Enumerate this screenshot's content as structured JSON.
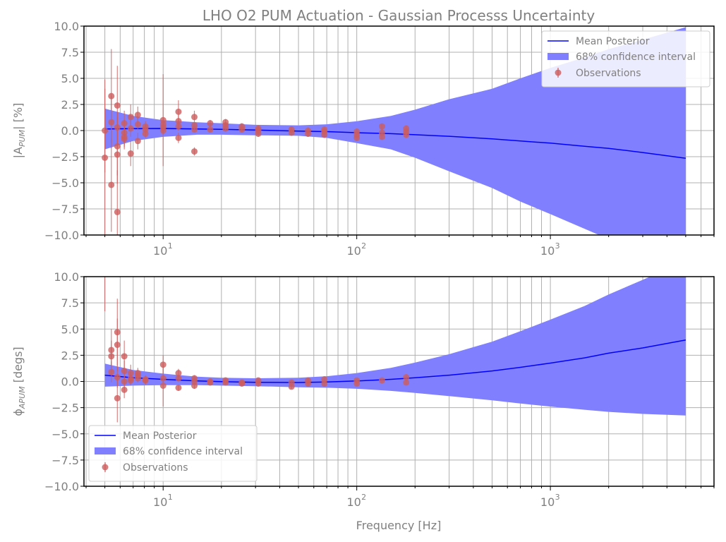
{
  "title": "LHO O2 PUM Actuation - Gaussian Processs Uncertainty",
  "xlabel": "Frequency [Hz]",
  "colors": {
    "mean": "#0000ff",
    "band": "#8080ff",
    "observations": "#cd5c5c",
    "grid": "#b0b0b0",
    "text": "#808080",
    "frame": "#000000"
  },
  "legend_labels": {
    "mean": "Mean Posterior",
    "band": "68% confidence interval",
    "obs": "Observations"
  },
  "chart_data": [
    {
      "type": "scatter",
      "panel": "top",
      "ylabel_main": "|A",
      "ylabel_sub": "PUM",
      "ylabel_tail": "| [%]",
      "xscale": "log",
      "xlim": [
        3.9,
        7000
      ],
      "ylim": [
        -10,
        10
      ],
      "xtick_base": "10",
      "xticks_exp": [
        "1",
        "2",
        "3"
      ],
      "yticks": [
        "10.0",
        "7.5",
        "5.0",
        "2.5",
        "0.0",
        "−2.5",
        "−5.0",
        "−7.5",
        "−10.0"
      ],
      "grid": true,
      "legend_position": "upper right",
      "mean_posterior": {
        "x": [
          5,
          7,
          10,
          15,
          20,
          30,
          50,
          70,
          100,
          150,
          200,
          300,
          500,
          700,
          1000,
          1500,
          2000,
          3000,
          5000
        ],
        "y": [
          0.15,
          0.18,
          0.2,
          0.15,
          0.12,
          0.05,
          -0.05,
          -0.1,
          -0.2,
          -0.3,
          -0.4,
          -0.55,
          -0.8,
          -1.0,
          -1.2,
          -1.5,
          -1.7,
          -2.1,
          -2.65
        ]
      },
      "confidence_band": {
        "x": [
          5,
          7,
          10,
          15,
          20,
          30,
          50,
          70,
          100,
          150,
          200,
          300,
          500,
          700,
          1000,
          1500,
          2000,
          3000,
          5000
        ],
        "upper": [
          2.1,
          1.4,
          1.0,
          0.8,
          0.7,
          0.55,
          0.5,
          0.6,
          0.9,
          1.4,
          2.0,
          3.0,
          4.0,
          5.0,
          6.0,
          7.0,
          7.8,
          8.7,
          9.9
        ],
        "lower": [
          -1.8,
          -1.0,
          -0.6,
          -0.4,
          -0.4,
          -0.45,
          -0.5,
          -0.7,
          -1.2,
          -1.8,
          -2.6,
          -3.9,
          -5.5,
          -6.8,
          -8.0,
          -9.4,
          -10.4,
          -11.5,
          -13.0
        ]
      },
      "observations": {
        "x": [
          5.0,
          5.0,
          5.4,
          5.4,
          5.4,
          5.8,
          5.8,
          5.8,
          5.8,
          5.8,
          6.3,
          6.3,
          6.3,
          6.3,
          6.8,
          6.8,
          6.8,
          7.4,
          7.4,
          7.4,
          8.1,
          8.1,
          8.1,
          10,
          10,
          10,
          10,
          12,
          12,
          12,
          12,
          14.5,
          14.5,
          14.5,
          14.5,
          17.5,
          17.5,
          21,
          21,
          21,
          25.5,
          25.5,
          31,
          31,
          31,
          46,
          46,
          56,
          56,
          68,
          68,
          68,
          100,
          100,
          100,
          135,
          135,
          135,
          180,
          180,
          180
        ],
        "y": [
          -2.6,
          0.0,
          3.3,
          0.8,
          -5.2,
          2.4,
          -1.5,
          -2.3,
          -7.8,
          0.3,
          0.7,
          -0.2,
          -0.6,
          -0.8,
          1.3,
          -2.2,
          0.2,
          1.5,
          -1.0,
          0.6,
          0.4,
          0.1,
          -0.3,
          1.0,
          0.6,
          0.3,
          0.0,
          1.8,
          0.9,
          0.4,
          -0.7,
          1.3,
          0.5,
          0.1,
          -2.0,
          0.7,
          0.1,
          0.8,
          0.5,
          0.2,
          0.4,
          0.1,
          0.2,
          0.0,
          -0.3,
          0.1,
          -0.2,
          0.0,
          -0.3,
          0.1,
          -0.1,
          -0.4,
          -0.1,
          -0.4,
          -0.7,
          0.4,
          -0.2,
          -0.6,
          0.2,
          -0.1,
          -0.4
        ],
        "err": [
          7.5,
          4.0,
          4.5,
          2.5,
          4.5,
          3.8,
          2.8,
          2.8,
          4.0,
          1.5,
          1.2,
          1.2,
          1.0,
          1.0,
          1.2,
          1.2,
          0.8,
          0.8,
          0.8,
          0.6,
          0.5,
          0.5,
          0.4,
          4.4,
          0.6,
          0.5,
          0.4,
          1.1,
          0.6,
          0.4,
          0.5,
          0.6,
          0.3,
          0.3,
          0.4,
          0.3,
          0.3,
          0.3,
          0.3,
          0.3,
          0.3,
          0.3,
          0.3,
          0.3,
          0.3,
          0.3,
          0.3,
          0.3,
          0.3,
          0.3,
          0.3,
          0.3,
          0.3,
          0.3,
          0.3,
          0.3,
          0.3,
          0.3,
          0.3,
          0.3,
          0.3
        ]
      }
    },
    {
      "type": "scatter",
      "panel": "bottom",
      "ylabel_main": "ϕ",
      "ylabel_sub": "APUM",
      "ylabel_tail": " [degs]",
      "xscale": "log",
      "xlim": [
        3.9,
        7000
      ],
      "ylim": [
        -10,
        10
      ],
      "xtick_base": "10",
      "xticks_exp": [
        "1",
        "2",
        "3"
      ],
      "yticks": [
        "10.0",
        "7.5",
        "5.0",
        "2.5",
        "0.0",
        "−2.5",
        "−5.0",
        "−7.5",
        "−10.0"
      ],
      "grid": true,
      "legend_position": "lower left",
      "mean_posterior": {
        "x": [
          5,
          7,
          10,
          15,
          20,
          30,
          50,
          70,
          100,
          150,
          200,
          300,
          500,
          700,
          1000,
          1500,
          2000,
          3000,
          5000
        ],
        "y": [
          0.6,
          0.35,
          0.2,
          0.05,
          -0.02,
          -0.08,
          -0.1,
          -0.05,
          0.05,
          0.2,
          0.35,
          0.6,
          1.0,
          1.35,
          1.75,
          2.25,
          2.7,
          3.2,
          3.95
        ]
      },
      "confidence_band": {
        "x": [
          5,
          7,
          10,
          15,
          20,
          30,
          50,
          70,
          100,
          150,
          200,
          300,
          500,
          700,
          1000,
          1500,
          2000,
          3000,
          5000
        ],
        "upper": [
          1.7,
          1.1,
          0.75,
          0.45,
          0.35,
          0.3,
          0.35,
          0.5,
          0.8,
          1.3,
          1.8,
          2.6,
          3.8,
          4.8,
          5.9,
          7.2,
          8.3,
          9.7,
          11.5
        ],
        "lower": [
          -0.5,
          -0.4,
          -0.35,
          -0.35,
          -0.4,
          -0.45,
          -0.55,
          -0.6,
          -0.7,
          -0.9,
          -1.1,
          -1.4,
          -1.8,
          -2.1,
          -2.4,
          -2.7,
          -2.9,
          -3.1,
          -3.25
        ]
      },
      "observations": {
        "x": [
          5.0,
          5.4,
          5.4,
          5.4,
          5.8,
          5.8,
          5.8,
          5.8,
          6.3,
          6.3,
          6.3,
          6.3,
          6.8,
          6.8,
          6.8,
          7.4,
          7.4,
          7.4,
          8.1,
          8.1,
          10,
          10,
          10,
          12,
          12,
          12,
          14.5,
          14.5,
          14.5,
          17.5,
          17.5,
          21,
          21,
          25.5,
          25.5,
          31,
          31,
          46,
          46,
          56,
          56,
          68,
          68,
          100,
          100,
          135,
          180,
          180
        ],
        "y": [
          10.5,
          3.0,
          2.4,
          0.9,
          4.7,
          3.5,
          -1.6,
          0.4,
          2.4,
          1.0,
          0.0,
          -0.8,
          0.8,
          0.3,
          0.1,
          0.8,
          0.6,
          0.3,
          0.2,
          0.1,
          1.6,
          0.3,
          -0.4,
          0.8,
          0.3,
          -0.6,
          0.3,
          0.0,
          -0.4,
          0.0,
          -0.1,
          0.1,
          -0.1,
          -0.1,
          -0.2,
          0.1,
          -0.2,
          -0.1,
          -0.5,
          0.1,
          -0.2,
          0.2,
          -0.2,
          0.1,
          -0.2,
          0.1,
          0.4,
          -0.1
        ],
        "err": [
          3.8,
          2.0,
          1.5,
          1.0,
          3.2,
          2.5,
          2.3,
          1.0,
          1.5,
          1.0,
          0.8,
          0.8,
          0.8,
          0.6,
          0.5,
          0.5,
          0.5,
          0.4,
          0.4,
          0.4,
          0.9,
          0.4,
          2.0,
          0.4,
          0.3,
          0.3,
          0.3,
          0.3,
          0.3,
          0.2,
          0.2,
          0.2,
          0.2,
          0.2,
          0.2,
          0.2,
          0.2,
          0.2,
          0.2,
          0.2,
          0.2,
          0.2,
          0.2,
          0.2,
          0.2,
          0.2,
          0.2,
          0.2
        ]
      }
    }
  ]
}
